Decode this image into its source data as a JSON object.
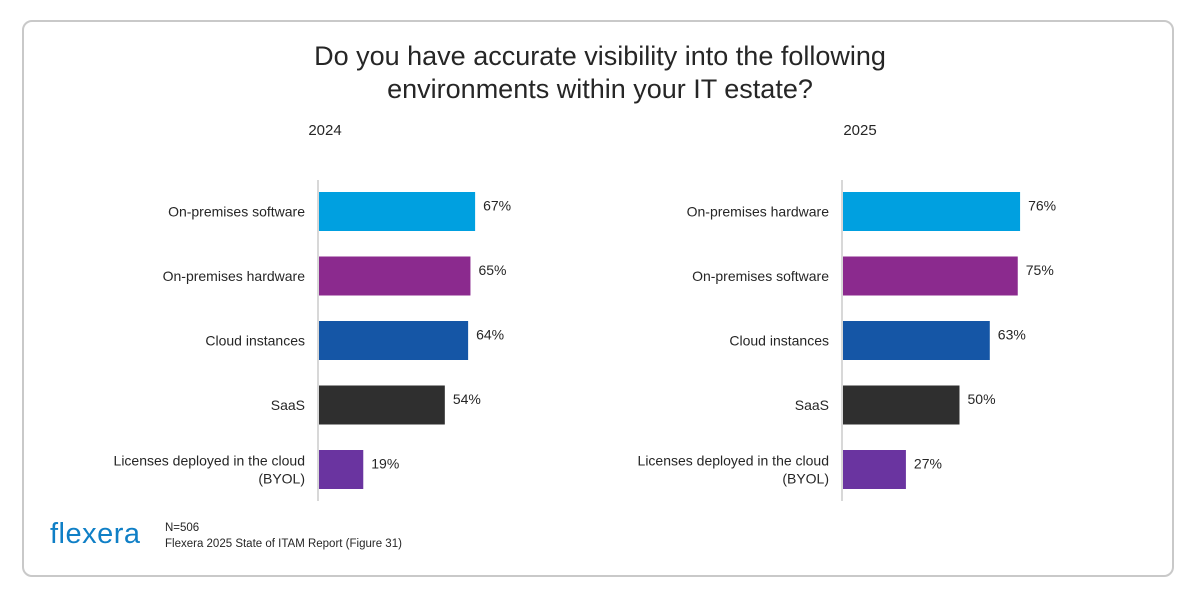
{
  "title_line1": "Do you have accurate visibility into the following",
  "title_line2": "environments within your IT estate?",
  "chart_data": [
    {
      "type": "bar",
      "orientation": "horizontal",
      "title": "2024",
      "categories": [
        [
          "On-premises software"
        ],
        [
          "On-premises hardware"
        ],
        [
          "Cloud instances"
        ],
        [
          "SaaS"
        ],
        [
          "Licenses deployed in the cloud",
          "(BYOL)"
        ]
      ],
      "values": [
        67,
        65,
        64,
        54,
        19
      ],
      "value_labels": [
        "67%",
        "65%",
        "64%",
        "54%",
        "19%"
      ],
      "colors": [
        "#00a0e0",
        "#8b2a8e",
        "#1556a6",
        "#2f2f2f",
        "#6a34a0"
      ],
      "xlim": [
        0,
        100
      ]
    },
    {
      "type": "bar",
      "orientation": "horizontal",
      "title": "2025",
      "categories": [
        [
          "On-premises hardware"
        ],
        [
          "On-premises software"
        ],
        [
          "Cloud instances"
        ],
        [
          "SaaS"
        ],
        [
          "Licenses deployed in the cloud",
          "(BYOL)"
        ]
      ],
      "values": [
        76,
        75,
        63,
        50,
        27
      ],
      "value_labels": [
        "76%",
        "75%",
        "63%",
        "50%",
        "27%"
      ],
      "colors": [
        "#00a0e0",
        "#8b2a8e",
        "#1556a6",
        "#2f2f2f",
        "#6a34a0"
      ],
      "xlim": [
        0,
        100
      ]
    }
  ],
  "logo": {
    "text_main": "flex",
    "text_accent": "era"
  },
  "footnote": {
    "sample": "N=506",
    "source": "Flexera 2025 State of ITAM Report (Figure 31)"
  }
}
